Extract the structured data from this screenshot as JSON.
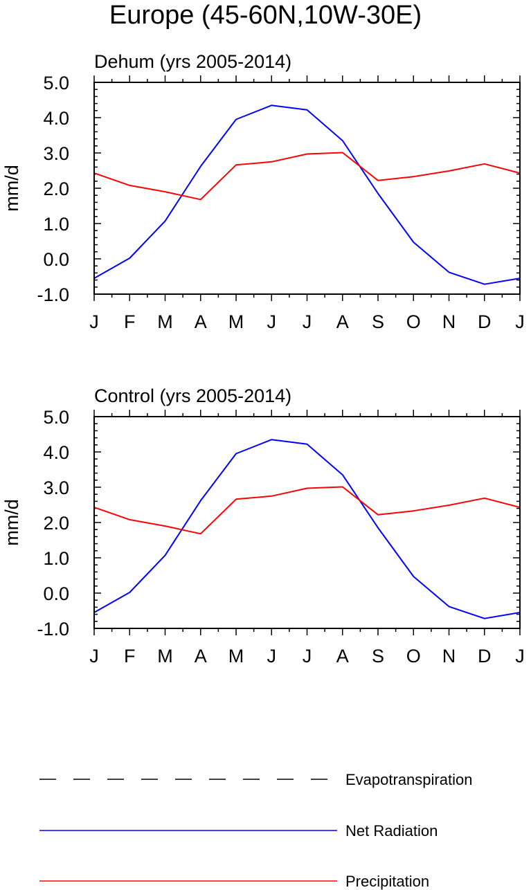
{
  "figure_title": "Europe (45-60N,10W-30E)",
  "legend": [
    {
      "label": "Evapotranspiration",
      "color": "#000000",
      "style": "dashed"
    },
    {
      "label": "Net Radiation",
      "color": "#0000ff",
      "style": "solid"
    },
    {
      "label": "Precipitation",
      "color": "#ff0000",
      "style": "solid"
    }
  ],
  "chart_data": [
    {
      "type": "line",
      "title": "Dehum (yrs 2005-2014)",
      "xlabel": "",
      "ylabel": "mm/d",
      "categories": [
        "J",
        "F",
        "M",
        "A",
        "M",
        "J",
        "J",
        "A",
        "S",
        "O",
        "N",
        "D",
        "J"
      ],
      "ylim": [
        -1.0,
        5.0
      ],
      "yticks": [
        "-1.0",
        "0.0",
        "1.0",
        "2.0",
        "3.0",
        "4.0",
        "5.0"
      ],
      "series": [
        {
          "name": "Net Radiation",
          "color": "#0000ff",
          "values": [
            -0.55,
            0.02,
            1.07,
            2.62,
            3.95,
            4.35,
            4.22,
            3.35,
            1.85,
            0.47,
            -0.38,
            -0.72,
            -0.55
          ]
        },
        {
          "name": "Precipitation",
          "color": "#ff0000",
          "values": [
            2.43,
            2.08,
            1.9,
            1.68,
            2.66,
            2.75,
            2.97,
            3.01,
            2.22,
            2.33,
            2.49,
            2.69,
            2.43
          ]
        }
      ]
    },
    {
      "type": "line",
      "title": "Control (yrs 2005-2014)",
      "xlabel": "",
      "ylabel": "mm/d",
      "categories": [
        "J",
        "F",
        "M",
        "A",
        "M",
        "J",
        "J",
        "A",
        "S",
        "O",
        "N",
        "D",
        "J"
      ],
      "ylim": [
        -1.0,
        5.0
      ],
      "yticks": [
        "-1.0",
        "0.0",
        "1.0",
        "2.0",
        "3.0",
        "4.0",
        "5.0"
      ],
      "series": [
        {
          "name": "Net Radiation",
          "color": "#0000ff",
          "values": [
            -0.55,
            0.02,
            1.07,
            2.62,
            3.95,
            4.35,
            4.22,
            3.35,
            1.85,
            0.47,
            -0.38,
            -0.72,
            -0.55
          ]
        },
        {
          "name": "Precipitation",
          "color": "#ff0000",
          "values": [
            2.43,
            2.08,
            1.9,
            1.68,
            2.66,
            2.75,
            2.97,
            3.01,
            2.22,
            2.33,
            2.49,
            2.69,
            2.43
          ]
        }
      ]
    }
  ]
}
